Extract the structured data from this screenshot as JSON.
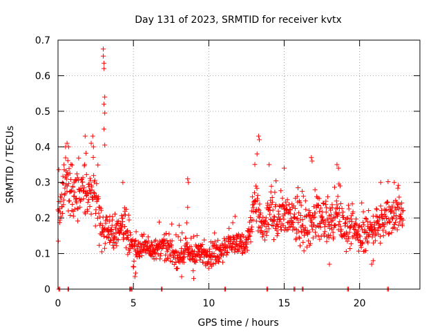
{
  "chart_data": {
    "type": "scatter",
    "title": "Day 131 of 2023, SRMTID for receiver kvtx",
    "xlabel": "GPS time / hours",
    "ylabel": "SRMTID / TECUs",
    "xlim": [
      0,
      24
    ],
    "ylim": [
      0,
      0.7
    ],
    "xticks": [
      0,
      5,
      10,
      15,
      20
    ],
    "yticks": [
      0,
      0.1,
      0.2,
      0.3,
      0.4,
      0.5,
      0.6,
      0.7
    ],
    "grid": true,
    "marker": "plus",
    "color": "#ff0000",
    "trend": [
      [
        0.0,
        0.21,
        0.06
      ],
      [
        0.3,
        0.27,
        0.07
      ],
      [
        0.6,
        0.3,
        0.07
      ],
      [
        1.0,
        0.26,
        0.07
      ],
      [
        1.5,
        0.27,
        0.07
      ],
      [
        2.0,
        0.26,
        0.07
      ],
      [
        2.5,
        0.27,
        0.07
      ],
      [
        2.8,
        0.18,
        0.05
      ],
      [
        3.0,
        0.17,
        0.04
      ],
      [
        3.5,
        0.16,
        0.04
      ],
      [
        4.0,
        0.16,
        0.04
      ],
      [
        4.4,
        0.19,
        0.05
      ],
      [
        4.7,
        0.15,
        0.04
      ],
      [
        5.0,
        0.1,
        0.03
      ],
      [
        5.5,
        0.12,
        0.03
      ],
      [
        6.0,
        0.12,
        0.03
      ],
      [
        6.5,
        0.11,
        0.03
      ],
      [
        7.0,
        0.12,
        0.03
      ],
      [
        7.5,
        0.11,
        0.03
      ],
      [
        8.0,
        0.09,
        0.03
      ],
      [
        8.5,
        0.11,
        0.03
      ],
      [
        9.0,
        0.09,
        0.03
      ],
      [
        9.5,
        0.1,
        0.03
      ],
      [
        10.0,
        0.1,
        0.03
      ],
      [
        10.5,
        0.1,
        0.03
      ],
      [
        11.0,
        0.12,
        0.03
      ],
      [
        11.5,
        0.13,
        0.03
      ],
      [
        12.0,
        0.13,
        0.03
      ],
      [
        12.5,
        0.12,
        0.03
      ],
      [
        12.8,
        0.18,
        0.05
      ],
      [
        13.0,
        0.25,
        0.06
      ],
      [
        13.3,
        0.2,
        0.05
      ],
      [
        13.7,
        0.16,
        0.04
      ],
      [
        14.0,
        0.22,
        0.06
      ],
      [
        14.5,
        0.2,
        0.05
      ],
      [
        15.0,
        0.21,
        0.05
      ],
      [
        15.5,
        0.19,
        0.05
      ],
      [
        16.0,
        0.18,
        0.05
      ],
      [
        16.5,
        0.17,
        0.05
      ],
      [
        17.0,
        0.2,
        0.05
      ],
      [
        17.5,
        0.19,
        0.05
      ],
      [
        18.0,
        0.18,
        0.05
      ],
      [
        18.5,
        0.22,
        0.06
      ],
      [
        19.0,
        0.17,
        0.05
      ],
      [
        19.5,
        0.18,
        0.04
      ],
      [
        20.0,
        0.14,
        0.04
      ],
      [
        20.5,
        0.16,
        0.04
      ],
      [
        21.0,
        0.18,
        0.04
      ],
      [
        21.5,
        0.18,
        0.05
      ],
      [
        22.0,
        0.21,
        0.05
      ],
      [
        22.5,
        0.22,
        0.05
      ],
      [
        22.9,
        0.2,
        0.04
      ]
    ],
    "outliers": [
      [
        0.5,
        0.4
      ],
      [
        0.6,
        0.41
      ],
      [
        0.7,
        0.4
      ],
      [
        1.8,
        0.43
      ],
      [
        2.2,
        0.41
      ],
      [
        2.3,
        0.43
      ],
      [
        2.35,
        0.4
      ],
      [
        3.0,
        0.675
      ],
      [
        3.0,
        0.655
      ],
      [
        3.05,
        0.635
      ],
      [
        3.05,
        0.62
      ],
      [
        3.1,
        0.54
      ],
      [
        3.05,
        0.52
      ],
      [
        3.1,
        0.495
      ],
      [
        3.05,
        0.45
      ],
      [
        3.1,
        0.405
      ],
      [
        4.3,
        0.3
      ],
      [
        8.6,
        0.31
      ],
      [
        8.65,
        0.3
      ],
      [
        8.6,
        0.23
      ],
      [
        13.3,
        0.43
      ],
      [
        13.35,
        0.42
      ],
      [
        13.2,
        0.38
      ],
      [
        14.0,
        0.35
      ],
      [
        15.0,
        0.34
      ],
      [
        16.8,
        0.37
      ],
      [
        16.85,
        0.36
      ],
      [
        18.5,
        0.35
      ],
      [
        18.6,
        0.34
      ],
      [
        21.4,
        0.3
      ],
      [
        22.3,
        0.3
      ],
      [
        8.2,
        0.035
      ],
      [
        9.0,
        0.03
      ],
      [
        5.1,
        0.035
      ],
      [
        5.15,
        0.045
      ],
      [
        18.0,
        0.07
      ],
      [
        20.8,
        0.07
      ],
      [
        20.9,
        0.08
      ]
    ],
    "baseline_marks": [
      0.05,
      0.65,
      4.75,
      4.85,
      6.85,
      11.05,
      13.85,
      15.65,
      16.2,
      19.2,
      21.85
    ]
  }
}
